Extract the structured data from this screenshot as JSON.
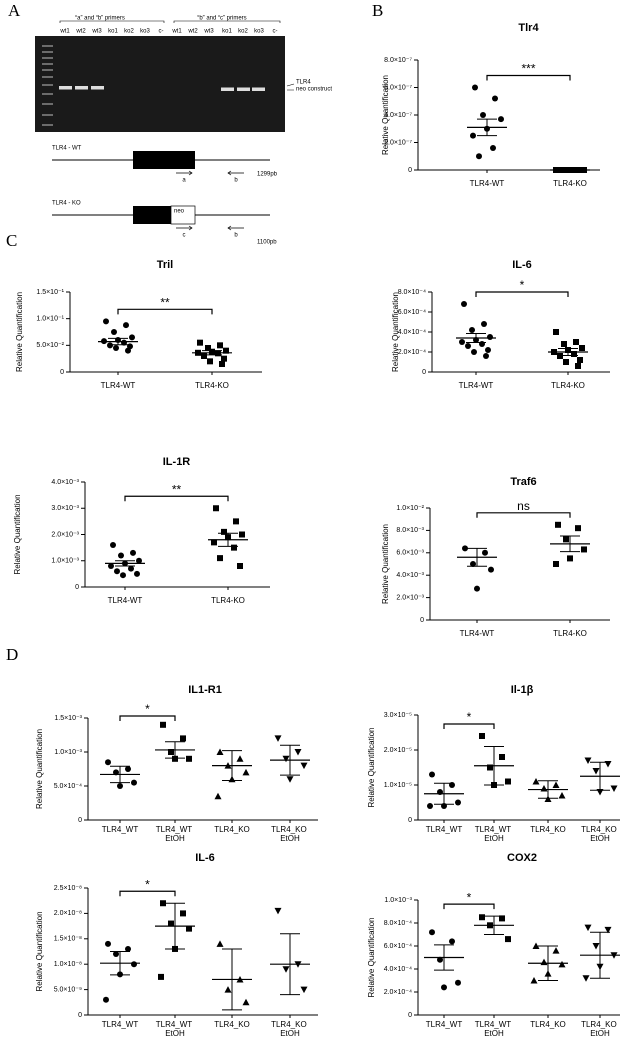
{
  "panel_labels": [
    "A",
    "B",
    "C",
    "D"
  ],
  "gel": {
    "primer_groups": [
      "“a” and “b” primers",
      "“b” and “c” primers"
    ],
    "lanes": [
      "wt1",
      "wt2",
      "wt3",
      "ko1",
      "ko2",
      "ko3",
      "c-",
      "wt1",
      "wt2",
      "wt3",
      "ko1",
      "ko2",
      "ko3",
      "c-"
    ],
    "band_labels": [
      "TLR4",
      "neo construct"
    ]
  },
  "constructs": [
    {
      "label": "TLR4 - WT",
      "primers": [
        "a",
        "b"
      ],
      "size": "1299pb"
    },
    {
      "label": "TLR4 - KO",
      "insert": "neo",
      "primers": [
        "c",
        "b"
      ],
      "size": "1100pb"
    }
  ],
  "chart_data": [
    {
      "type": "scatter",
      "title": "Tlr4",
      "y_label": "Relative Quantification",
      "categories": [
        "TLR4-WT",
        "TLR4-KO"
      ],
      "markers": [
        "circle",
        "square"
      ],
      "points": [
        [
          6e-07,
          5.2e-07,
          4e-07,
          3.7e-07,
          3e-07,
          2.5e-07,
          1.6e-07,
          1e-07
        ],
        [
          0,
          0,
          0,
          0,
          0,
          0,
          0,
          0
        ]
      ],
      "means": [
        3.1e-07,
        0
      ],
      "errors": [
        6e-08,
        0
      ],
      "significance": "***",
      "ylim": [
        0,
        8e-07
      ],
      "yticks": [
        0,
        {
          "value": 2e-07,
          "label": "2.0×10⁻⁷"
        },
        {
          "value": 4e-07,
          "label": "4.0×10⁻⁷"
        },
        {
          "value": 6e-07,
          "label": "6.0×10⁻⁷"
        },
        {
          "value": 8e-07,
          "label": "8.0×10⁻⁷"
        }
      ]
    },
    {
      "type": "scatter",
      "title": "Tril",
      "y_label": "Relative Quantification",
      "categories": [
        "TLR4-WT",
        "TLR4-KO"
      ],
      "markers": [
        "circle",
        "square"
      ],
      "points": [
        [
          0.095,
          0.088,
          0.075,
          0.065,
          0.06,
          0.058,
          0.055,
          0.05,
          0.048,
          0.045,
          0.04
        ],
        [
          0.055,
          0.05,
          0.045,
          0.04,
          0.038,
          0.036,
          0.035,
          0.03,
          0.025,
          0.02,
          0.015
        ]
      ],
      "means": [
        0.057,
        0.036
      ],
      "errors": [
        0.006,
        0.004
      ],
      "significance": "**",
      "ylim": [
        0,
        0.15
      ],
      "yticks": [
        0,
        {
          "value": 0.05,
          "label": "5.0×10⁻²"
        },
        {
          "value": 0.1,
          "label": "1.0×10⁻¹"
        },
        {
          "value": 0.15,
          "label": "1.5×10⁻¹"
        }
      ]
    },
    {
      "type": "scatter",
      "title": "IL-6",
      "y_label": "Relative Quantification",
      "categories": [
        "TLR4-WT",
        "TLR4-KO"
      ],
      "markers": [
        "circle",
        "square"
      ],
      "points": [
        [
          0.00068,
          0.00048,
          0.00042,
          0.00035,
          0.00032,
          0.0003,
          0.00028,
          0.00026,
          0.00022,
          0.0002,
          0.00016
        ],
        [
          0.0004,
          0.0003,
          0.00028,
          0.00024,
          0.00022,
          0.0002,
          0.00018,
          0.00016,
          0.00012,
          0.0001,
          6e-05
        ]
      ],
      "means": [
        0.00034,
        0.0002
      ],
      "errors": [
        4.5e-05,
        3.5e-05
      ],
      "significance": "*",
      "ylim": [
        0,
        0.0008
      ],
      "yticks": [
        0,
        {
          "value": 0.0002,
          "label": "2.0×10⁻⁴"
        },
        {
          "value": 0.0004,
          "label": "4.0×10⁻⁴"
        },
        {
          "value": 0.0006,
          "label": "6.0×10⁻⁴"
        },
        {
          "value": 0.0008,
          "label": "8.0×10⁻⁴"
        }
      ]
    },
    {
      "type": "scatter",
      "title": "IL-1R",
      "y_label": "Relative Quantification",
      "categories": [
        "TLR4-WT",
        "TLR4-KO"
      ],
      "markers": [
        "circle",
        "square"
      ],
      "points": [
        [
          0.0016,
          0.0013,
          0.0012,
          0.001,
          0.0009,
          0.0008,
          0.0007,
          0.0006,
          0.0005,
          0.00045
        ],
        [
          0.003,
          0.0025,
          0.0021,
          0.002,
          0.0019,
          0.0017,
          0.0015,
          0.0011,
          0.0008
        ]
      ],
      "means": [
        0.0009,
        0.0018
      ],
      "errors": [
        0.0001,
        0.00025
      ],
      "significance": "**",
      "ylim": [
        0,
        0.004
      ],
      "yticks": [
        0,
        {
          "value": 0.001,
          "label": "1.0×10⁻³"
        },
        {
          "value": 0.002,
          "label": "2.0×10⁻³"
        },
        {
          "value": 0.003,
          "label": "3.0×10⁻³"
        },
        {
          "value": 0.004,
          "label": "4.0×10⁻³"
        }
      ]
    },
    {
      "type": "scatter",
      "title": "Traf6",
      "y_label": "Relative Quantification",
      "categories": [
        "TLR4-WT",
        "TLR4-KO"
      ],
      "markers": [
        "circle",
        "square"
      ],
      "points": [
        [
          0.0064,
          0.006,
          0.005,
          0.0045,
          0.0028
        ],
        [
          0.0085,
          0.0082,
          0.0072,
          0.0063,
          0.0055,
          0.005
        ]
      ],
      "means": [
        0.0056,
        0.0068
      ],
      "errors": [
        0.0008,
        0.0007
      ],
      "significance": "ns",
      "ylim": [
        0,
        0.01
      ],
      "yticks": [
        0,
        {
          "value": 0.002,
          "label": "2.0×10⁻³"
        },
        {
          "value": 0.004,
          "label": "4.0×10⁻³"
        },
        {
          "value": 0.006,
          "label": "6.0×10⁻³"
        },
        {
          "value": 0.008,
          "label": "8.0×10⁻³"
        },
        {
          "value": 0.01,
          "label": "1.0×10⁻²"
        }
      ]
    },
    {
      "type": "scatter",
      "title": "IL1-R1",
      "y_label": "Relative Quantification",
      "categories": [
        "TLR4_WT",
        "TLR4_WT EtOH",
        "TLR4_KO",
        "TLR4_KO EtOH"
      ],
      "markers": [
        "circle",
        "square",
        "triangle-up",
        "triangle-down"
      ],
      "points": [
        [
          0.00085,
          0.00075,
          0.0007,
          0.00055,
          0.0005
        ],
        [
          0.0014,
          0.0012,
          0.001,
          0.0009,
          0.0009
        ],
        [
          0.001,
          0.0009,
          0.0008,
          0.0007,
          0.0006,
          0.00035
        ],
        [
          0.0012,
          0.001,
          0.0009,
          0.0008,
          0.0006
        ]
      ],
      "means": [
        0.00067,
        0.00103,
        0.0008,
        0.00088
      ],
      "errors": [
        0.00012,
        0.00012,
        0.00022,
        0.00022
      ],
      "significance": "*",
      "ylim": [
        0,
        0.0015
      ],
      "yticks": [
        0,
        {
          "value": 0.0005,
          "label": "5.0×10⁻⁴"
        },
        {
          "value": 0.001,
          "label": "1.0×10⁻³"
        },
        {
          "value": 0.0015,
          "label": "1.5×10⁻³"
        }
      ]
    },
    {
      "type": "scatter",
      "title": "Il-1β",
      "y_label": "Relative Quantification",
      "categories": [
        "TLR4_WT",
        "TLR4_WT EtOH",
        "TLR4_KO",
        "TLR4_KO EtOH"
      ],
      "markers": [
        "circle",
        "square",
        "triangle-up",
        "triangle-down"
      ],
      "points": [
        [
          1.3e-05,
          1e-05,
          8e-06,
          5e-06,
          4e-06,
          4e-06
        ],
        [
          2.4e-05,
          1.8e-05,
          1.5e-05,
          1.1e-05,
          1e-05
        ],
        [
          1.1e-05,
          1e-05,
          9e-06,
          7e-06,
          6e-06
        ],
        [
          1.7e-05,
          1.6e-05,
          1.4e-05,
          9e-06,
          8e-06
        ]
      ],
      "means": [
        7.5e-06,
        1.55e-05,
        8.7e-06,
        1.25e-05
      ],
      "errors": [
        3e-06,
        5.5e-06,
        2.5e-06,
        4e-06
      ],
      "significance": "*",
      "ylim": [
        0,
        3e-05
      ],
      "yticks": [
        0,
        {
          "value": 1e-05,
          "label": "1.0×10⁻⁵"
        },
        {
          "value": 2e-05,
          "label": "2.0×10⁻⁵"
        },
        {
          "value": 3e-05,
          "label": "3.0×10⁻⁵"
        }
      ]
    },
    {
      "type": "scatter",
      "title": "IL-6",
      "y_label": "Relative Quantification",
      "categories": [
        "TLR4_WT",
        "TLR4_WT EtOH",
        "TLR4_KO",
        "TLR4_KO EtOH"
      ],
      "markers": [
        "circle",
        "square",
        "triangle-up",
        "triangle-down"
      ],
      "points": [
        [
          1.4e-08,
          1.3e-08,
          1.2e-08,
          1e-08,
          8e-09,
          3e-09
        ],
        [
          2.2e-08,
          2e-08,
          1.8e-08,
          1.7e-08,
          1.3e-08,
          7.5e-09
        ],
        [
          1.4e-08,
          7e-09,
          5e-09,
          2.5e-09
        ],
        [
          2.05e-08,
          1e-08,
          9e-09,
          5e-09
        ]
      ],
      "means": [
        1.02e-08,
        1.75e-08,
        7e-09,
        1e-08
      ],
      "errors": [
        2.3e-09,
        4.5e-09,
        6e-09,
        6e-09
      ],
      "significance": "*",
      "ylim": [
        0,
        2.5e-08
      ],
      "yticks": [
        0,
        {
          "value": 5e-09,
          "label": "5.0×10⁻⁹"
        },
        {
          "value": 1e-08,
          "label": "1.0×10⁻⁸"
        },
        {
          "value": 1.5e-08,
          "label": "1.5×10⁻⁸"
        },
        {
          "value": 2e-08,
          "label": "2.0×10⁻⁸"
        },
        {
          "value": 2.5e-08,
          "label": "2.5×10⁻⁸"
        }
      ]
    },
    {
      "type": "scatter",
      "title": "COX2",
      "y_label": "Relative Quantification",
      "categories": [
        "TLR4_WT",
        "TLR4_WT EtOH",
        "TLR4_KO",
        "TLR4_KO EtOH"
      ],
      "markers": [
        "circle",
        "square",
        "triangle-up",
        "triangle-down"
      ],
      "points": [
        [
          0.00072,
          0.00064,
          0.00048,
          0.00028,
          0.00024
        ],
        [
          0.00085,
          0.00084,
          0.00078,
          0.00066
        ],
        [
          0.0006,
          0.00056,
          0.00046,
          0.00044,
          0.00036,
          0.0003
        ],
        [
          0.00076,
          0.00074,
          0.0006,
          0.00052,
          0.00042,
          0.00032
        ]
      ],
      "means": [
        0.0005,
        0.00078,
        0.00045,
        0.00052
      ],
      "errors": [
        0.00011,
        8e-05,
        0.00015,
        0.0002
      ],
      "significance": "*",
      "ylim": [
        0,
        0.001
      ],
      "yticks": [
        0,
        {
          "value": 0.0002,
          "label": "2.0×10⁻⁴"
        },
        {
          "value": 0.0004,
          "label": "4.0×10⁻⁴"
        },
        {
          "value": 0.0006,
          "label": "6.0×10⁻⁴"
        },
        {
          "value": 0.0008,
          "label": "8.0×10⁻⁴"
        },
        {
          "value": 0.001,
          "label": "1.0×10⁻³"
        }
      ]
    }
  ]
}
